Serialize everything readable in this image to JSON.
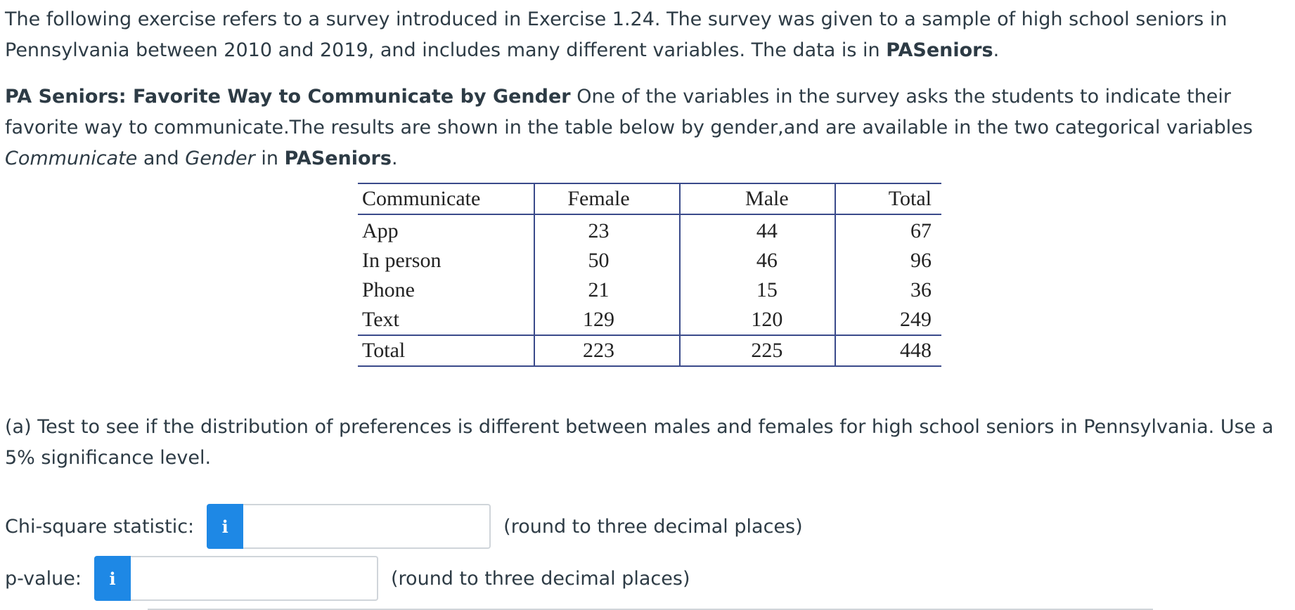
{
  "intro": {
    "text_1": "The following exercise refers to a survey introduced in Exercise 1.24. The survey was given to a sample of high school seniors in Pennsylvania between 2010 and 2019, and includes many different variables. The data is in ",
    "dataset": "PASeniors",
    "text_2": "."
  },
  "prompt": {
    "heading": "PA Seniors: Favorite Way to Communicate by Gender",
    "text_1": " One of the variables in the survey asks the students to indicate their favorite way to communicate.The results are shown in the table below by gender,and are available in the two categorical variables ",
    "var_1": "Communicate",
    "text_2": " and ",
    "var_2": "Gender",
    "text_3": " in ",
    "dataset": "PASeniors",
    "text_4": "."
  },
  "table": {
    "headers": [
      "Communicate",
      "Female",
      "Male",
      "Total"
    ],
    "rows": [
      [
        "App",
        "23",
        "44",
        "67"
      ],
      [
        "In person",
        "50",
        "46",
        "96"
      ],
      [
        "Phone",
        "21",
        "15",
        "36"
      ],
      [
        "Text",
        "129",
        "120",
        "249"
      ]
    ],
    "total_row": [
      "Total",
      "223",
      "225",
      "448"
    ]
  },
  "part_a": {
    "text": "(a) Test to see if the distribution of preferences is different between males and females for high school seniors in Pennsylvania. Use a 5% significance level."
  },
  "answers": {
    "chi": {
      "label": "Chi-square statistic:",
      "info_glyph": "i",
      "value": "",
      "hint": "(round to three decimal places)"
    },
    "p": {
      "label": "p-value:",
      "info_glyph": "i",
      "value": "",
      "hint": "(round to three decimal places)"
    }
  },
  "colors": {
    "text": "#2d3b45",
    "info_button": "#1e88e5",
    "table_rule": "#3a4a8a",
    "input_border": "#d0d5da"
  }
}
